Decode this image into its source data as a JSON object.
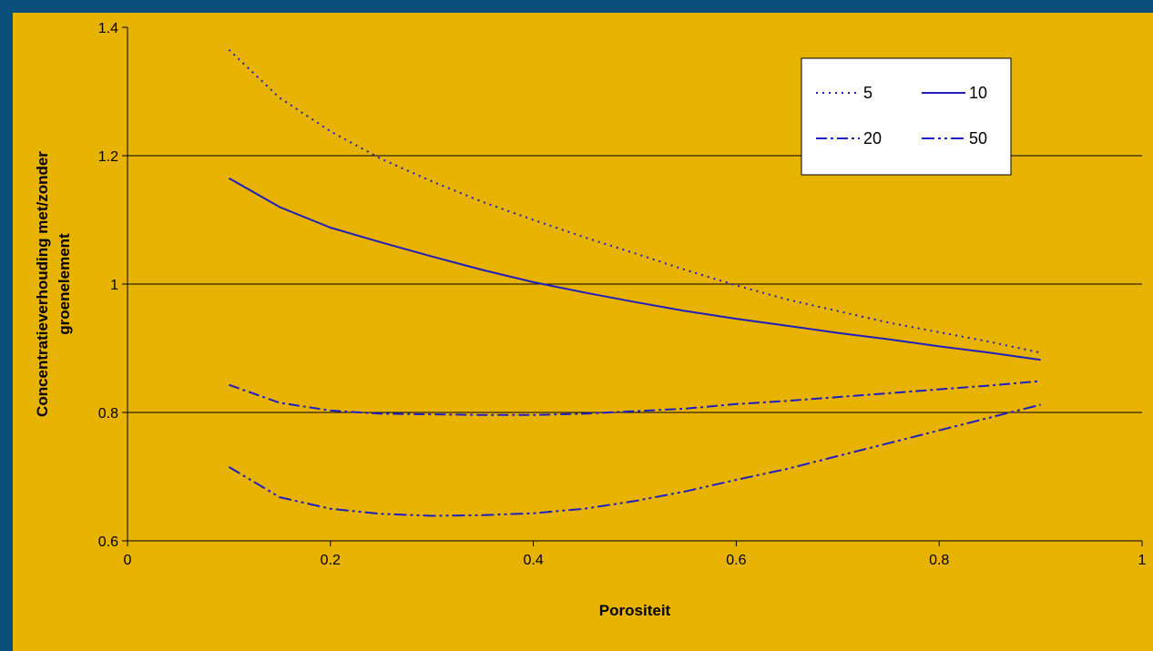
{
  "chart_data": {
    "type": "line",
    "title": "",
    "xlabel": "Porositeit",
    "ylabel_lines": [
      "Concentratieverhouding met/zonder",
      "groenelement"
    ],
    "xlim": [
      0,
      1
    ],
    "ylim": [
      0.6,
      1.4
    ],
    "xticks": [
      0,
      0.2,
      0.4,
      0.6,
      0.8,
      1
    ],
    "xtick_labels": [
      "0",
      "0.2",
      "0.4",
      "0.6",
      "0.8",
      "1"
    ],
    "yticks": [
      0.6,
      0.8,
      1,
      1.2,
      1.4
    ],
    "ytick_labels": [
      "0.6",
      "0.8",
      "1",
      "1.2",
      "1.4"
    ],
    "grid": "horizontal",
    "legend_position": "top-right",
    "colors": {
      "line": "#1f1fbf",
      "plot_bg": "#e8b200",
      "page_bg": "#0b4f7a"
    },
    "series": [
      {
        "name": "5",
        "dash": "dotted",
        "x": [
          0.1,
          0.15,
          0.2,
          0.25,
          0.3,
          0.35,
          0.4,
          0.45,
          0.5,
          0.55,
          0.6,
          0.65,
          0.7,
          0.75,
          0.8,
          0.85,
          0.9
        ],
        "y": [
          1.365,
          1.29,
          1.238,
          1.195,
          1.16,
          1.128,
          1.1,
          1.073,
          1.048,
          1.022,
          0.998,
          0.976,
          0.958,
          0.94,
          0.925,
          0.91,
          0.893
        ]
      },
      {
        "name": "10",
        "dash": "solid",
        "x": [
          0.1,
          0.15,
          0.2,
          0.25,
          0.3,
          0.35,
          0.4,
          0.45,
          0.5,
          0.55,
          0.6,
          0.65,
          0.7,
          0.75,
          0.8,
          0.85,
          0.9
        ],
        "y": [
          1.165,
          1.12,
          1.088,
          1.065,
          1.043,
          1.022,
          1.003,
          0.987,
          0.972,
          0.958,
          0.946,
          0.935,
          0.924,
          0.914,
          0.903,
          0.893,
          0.882
        ]
      },
      {
        "name": "20",
        "dash": "dash-dot",
        "x": [
          0.1,
          0.15,
          0.2,
          0.25,
          0.3,
          0.35,
          0.4,
          0.45,
          0.5,
          0.55,
          0.6,
          0.65,
          0.7,
          0.75,
          0.8,
          0.85,
          0.9
        ],
        "y": [
          0.843,
          0.815,
          0.803,
          0.798,
          0.797,
          0.796,
          0.796,
          0.798,
          0.802,
          0.806,
          0.813,
          0.818,
          0.824,
          0.83,
          0.836,
          0.842,
          0.849
        ]
      },
      {
        "name": "50",
        "dash": "dash-dot-dot",
        "x": [
          0.1,
          0.15,
          0.2,
          0.25,
          0.3,
          0.35,
          0.4,
          0.45,
          0.5,
          0.55,
          0.6,
          0.65,
          0.7,
          0.75,
          0.8,
          0.85,
          0.9
        ],
        "y": [
          0.715,
          0.668,
          0.65,
          0.642,
          0.639,
          0.64,
          0.643,
          0.65,
          0.662,
          0.677,
          0.695,
          0.712,
          0.732,
          0.752,
          0.772,
          0.792,
          0.812
        ]
      }
    ]
  }
}
